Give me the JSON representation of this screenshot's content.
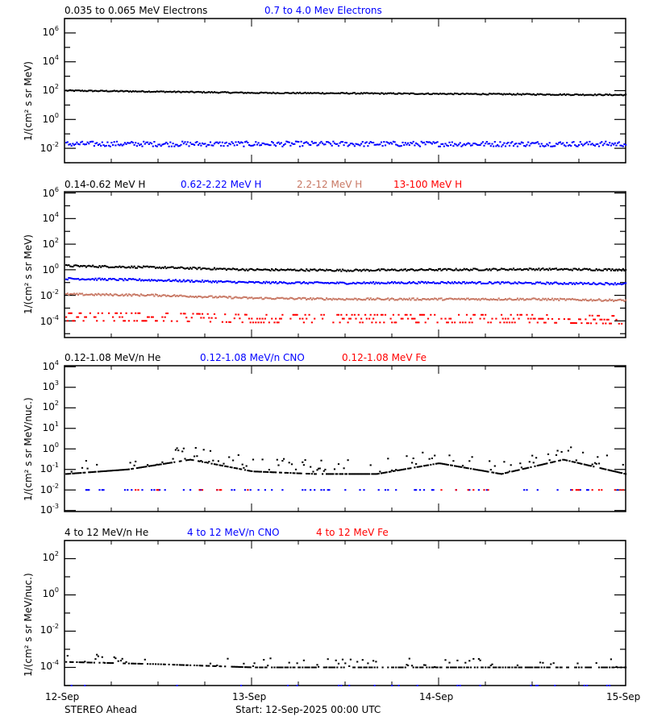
{
  "figure": {
    "spacecraft": "STEREO Ahead",
    "start_label": "Start: 12-Sep-2025 00:00 UTC",
    "x_ticks": [
      "12-Sep",
      "13-Sep",
      "14-Sep",
      "15-Sep"
    ]
  },
  "panels": [
    {
      "id": "electrons",
      "ylabel": "1/(cm² s sr MeV)",
      "legend": [
        {
          "label": "0.035 to 0.065 MeV Electrons",
          "color": "#000000"
        },
        {
          "label": "0.7 to 4.0 Mev Electrons",
          "color": "#0000ff"
        }
      ],
      "y_ticks": [
        {
          "base": "10",
          "exp": "6"
        },
        {
          "base": "10",
          "exp": "4"
        },
        {
          "base": "10",
          "exp": "2"
        },
        {
          "base": "10",
          "exp": "0"
        },
        {
          "base": "10",
          "exp": "-2"
        }
      ]
    },
    {
      "id": "protons",
      "ylabel": "1/(cm² s sr MeV)",
      "legend": [
        {
          "label": "0.14-0.62 MeV H",
          "color": "#000000"
        },
        {
          "label": "0.62-2.22 MeV H",
          "color": "#0000ff"
        },
        {
          "label": "2.2-12 MeV H",
          "color": "#c87864"
        },
        {
          "label": "13-100 MeV H",
          "color": "#ff0000"
        }
      ],
      "y_ticks": [
        {
          "base": "10",
          "exp": "6"
        },
        {
          "base": "10",
          "exp": "4"
        },
        {
          "base": "10",
          "exp": "2"
        },
        {
          "base": "10",
          "exp": "0"
        },
        {
          "base": "10",
          "exp": "-2"
        },
        {
          "base": "10",
          "exp": "-4"
        }
      ]
    },
    {
      "id": "low-energy-ions",
      "ylabel": "1/(cm² s sr MeV/nuc.)",
      "legend": [
        {
          "label": "0.12-1.08 MeV/n He",
          "color": "#000000"
        },
        {
          "label": "0.12-1.08 MeV/n CNO",
          "color": "#0000ff"
        },
        {
          "label": "0.12-1.08 MeV Fe",
          "color": "#ff0000"
        }
      ],
      "y_ticks": [
        {
          "base": "10",
          "exp": "4"
        },
        {
          "base": "10",
          "exp": "3"
        },
        {
          "base": "10",
          "exp": "2"
        },
        {
          "base": "10",
          "exp": "1"
        },
        {
          "base": "10",
          "exp": "0"
        },
        {
          "base": "10",
          "exp": "-1"
        },
        {
          "base": "10",
          "exp": "-2"
        },
        {
          "base": "10",
          "exp": "-3"
        }
      ]
    },
    {
      "id": "high-energy-ions",
      "ylabel": "1/(cm² s sr MeV/nuc.)",
      "legend": [
        {
          "label": "4 to 12 MeV/n He",
          "color": "#000000"
        },
        {
          "label": "4 to 12 MeV/n CNO",
          "color": "#0000ff"
        },
        {
          "label": "4 to 12 MeV Fe",
          "color": "#ff0000"
        }
      ],
      "y_ticks": [
        {
          "base": "10",
          "exp": "2"
        },
        {
          "base": "10",
          "exp": "0"
        },
        {
          "base": "10",
          "exp": "-2"
        },
        {
          "base": "10",
          "exp": "-4"
        }
      ]
    }
  ],
  "chart_data": [
    {
      "type": "scatter",
      "title": "",
      "xlabel": "",
      "ylabel": "1/(cm² s sr MeV)",
      "yscale": "log",
      "ylim": [
        0.001,
        10000000
      ],
      "x": [
        "12-Sep 00:00",
        "12-Sep 12:00",
        "13-Sep 00:00",
        "13-Sep 12:00",
        "14-Sep 00:00",
        "14-Sep 12:00",
        "15-Sep 00:00"
      ],
      "series": [
        {
          "name": "0.035 to 0.065 MeV Electrons",
          "color": "#000000",
          "values": [
            100,
            85,
            70,
            65,
            60,
            55,
            50
          ]
        },
        {
          "name": "0.7 to 4.0 Mev Electrons",
          "color": "#0000ff",
          "values": [
            0.02,
            0.02,
            0.02,
            0.02,
            0.02,
            0.02,
            0.02
          ]
        }
      ],
      "legend_position": "top"
    },
    {
      "type": "scatter",
      "title": "",
      "xlabel": "",
      "ylabel": "1/(cm² s sr MeV)",
      "yscale": "log",
      "ylim": [
        1e-05,
        1000000
      ],
      "x": [
        "12-Sep 00:00",
        "12-Sep 12:00",
        "13-Sep 00:00",
        "13-Sep 12:00",
        "14-Sep 00:00",
        "14-Sep 12:00",
        "15-Sep 00:00"
      ],
      "series": [
        {
          "name": "0.14-0.62 MeV H",
          "color": "#000000",
          "values": [
            2.0,
            1.5,
            1.0,
            0.9,
            1.0,
            1.1,
            1.0
          ]
        },
        {
          "name": "0.62-2.22 MeV H",
          "color": "#0000ff",
          "values": [
            0.2,
            0.15,
            0.1,
            0.09,
            0.1,
            0.09,
            0.08
          ]
        },
        {
          "name": "2.2-12 MeV H",
          "color": "#c87864",
          "values": [
            0.012,
            0.01,
            0.006,
            0.005,
            0.005,
            0.005,
            0.004
          ]
        },
        {
          "name": "13-100 MeV H",
          "color": "#ff0000",
          "values": [
            0.0002,
            0.0002,
            0.00015,
            0.00015,
            0.00015,
            0.00015,
            0.00012
          ]
        }
      ],
      "legend_position": "top"
    },
    {
      "type": "scatter",
      "title": "",
      "xlabel": "",
      "ylabel": "1/(cm² s sr MeV/nuc.)",
      "yscale": "log",
      "ylim": [
        0.001,
        10000
      ],
      "x": [
        "12-Sep 00:00",
        "12-Sep 12:00",
        "12-Sep 18:00",
        "13-Sep 00:00",
        "13-Sep 12:00",
        "13-Sep 18:00",
        "14-Sep 00:00",
        "14-Sep 12:00",
        "14-Sep 18:00",
        "15-Sep 00:00"
      ],
      "series": [
        {
          "name": "0.12-1.08 MeV/n He",
          "color": "#000000",
          "values": [
            0.06,
            0.1,
            0.3,
            0.08,
            0.06,
            0.06,
            0.2,
            0.06,
            0.3,
            0.06
          ]
        },
        {
          "name": "0.12-1.08 MeV/n CNO",
          "color": "#0000ff",
          "values": [
            0.01,
            0.01,
            0.01,
            0.01,
            0.01,
            0.01,
            0.01,
            0.01,
            0.01,
            0.01
          ]
        },
        {
          "name": "0.12-1.08 MeV Fe",
          "color": "#ff0000",
          "values": [
            null,
            0.01,
            0.01,
            null,
            null,
            null,
            0.01,
            null,
            0.01,
            null
          ]
        }
      ],
      "legend_position": "top"
    },
    {
      "type": "scatter",
      "title": "",
      "xlabel": "",
      "ylabel": "1/(cm² s sr MeV/nuc.)",
      "yscale": "log",
      "ylim": [
        1e-05,
        1000
      ],
      "x": [
        "12-Sep 00:00",
        "12-Sep 12:00",
        "13-Sep 00:00",
        "13-Sep 12:00",
        "14-Sep 00:00",
        "14-Sep 12:00",
        "15-Sep 00:00"
      ],
      "series": [
        {
          "name": "4 to 12 MeV/n He",
          "color": "#000000",
          "values": [
            0.0002,
            0.00015,
            0.0001,
            0.0001,
            0.0001,
            0.0001,
            0.0001
          ]
        },
        {
          "name": "4 to 12 MeV/n CNO",
          "color": "#0000ff",
          "values": [
            1e-05,
            1e-05,
            1e-05,
            1e-05,
            1e-05,
            1e-05,
            null
          ]
        },
        {
          "name": "4 to 12 MeV Fe",
          "color": "#ff0000",
          "values": [
            null,
            null,
            null,
            null,
            null,
            null,
            null
          ]
        }
      ],
      "legend_position": "top"
    }
  ]
}
